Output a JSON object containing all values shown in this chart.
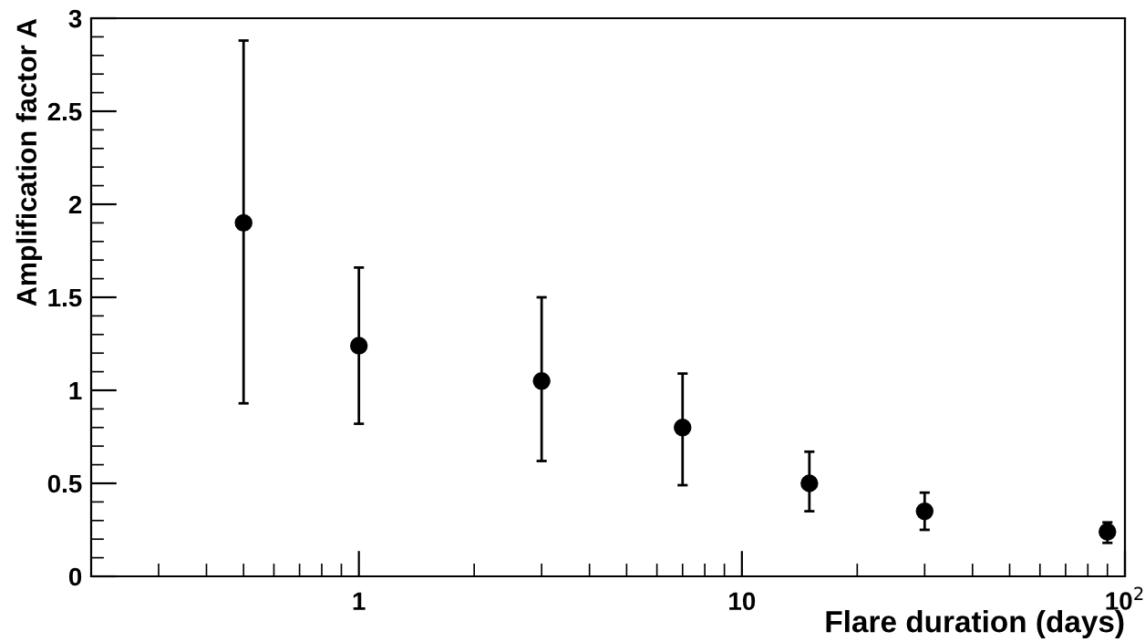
{
  "chart_data": {
    "type": "scatter",
    "xlabel": "Flare duration (days)",
    "ylabel": "Amplification factor A",
    "x": [
      0.5,
      1,
      3,
      7,
      15,
      30,
      90
    ],
    "series": [
      {
        "color": "#000000",
        "values": [
          1.9,
          1.24,
          1.05,
          0.8,
          0.5,
          0.35,
          0.24
        ],
        "errors": [
          [
            0.93,
            2.88
          ],
          [
            0.82,
            1.66
          ],
          [
            0.62,
            1.5
          ],
          [
            0.49,
            1.09
          ],
          [
            0.35,
            0.67
          ],
          [
            0.25,
            0.45
          ],
          [
            0.18,
            0.29
          ]
        ]
      }
    ],
    "log": "x",
    "xlim": [
      0.2,
      100
    ],
    "xticks": [
      1,
      10,
      {
        "value": 100,
        "label": "10$^{2}$"
      }
    ],
    "ylim": [
      0,
      3
    ],
    "yticks": [
      0,
      0.5,
      1,
      1.5,
      2,
      2.5,
      3
    ],
    "marker": "circle",
    "grid": false,
    "legend": false
  }
}
